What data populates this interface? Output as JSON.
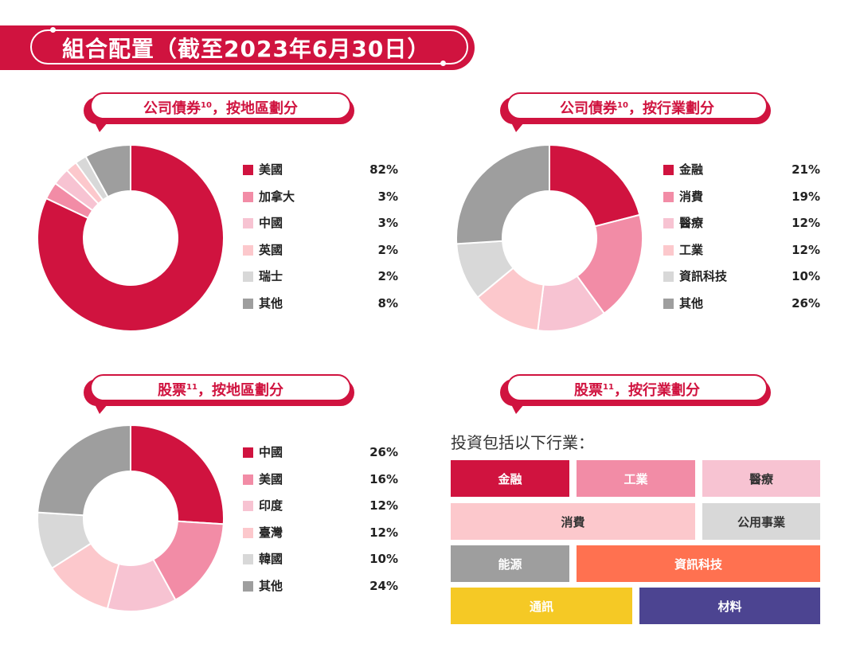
{
  "title": "組合配置（截至2023年6月30日）",
  "colors": {
    "crimson": "#d0133f",
    "pink": "#f28ca6",
    "light_pink": "#f7c3d2",
    "blush": "#fcc8cc",
    "light_grey": "#d8d8d8",
    "grey": "#9e9e9e",
    "orange": "#ff7150",
    "yellow": "#f5c925",
    "purple": "#4c4491"
  },
  "chart_data": [
    {
      "type": "pie",
      "title": "公司債券，按地區劃分",
      "title_text": "公司債券",
      "title_sup": "10",
      "title_suffix": "，按地區劃分",
      "categories": [
        "美國",
        "加拿大",
        "中國",
        "英國",
        "瑞士",
        "其他"
      ],
      "values": [
        82,
        3,
        3,
        2,
        2,
        8
      ],
      "labels": [
        "82%",
        "3%",
        "3%",
        "2%",
        "2%",
        "8%"
      ],
      "colors": [
        "#d0133f",
        "#f28ca6",
        "#f7c3d2",
        "#fcc8cc",
        "#d8d8d8",
        "#9e9e9e"
      ]
    },
    {
      "type": "pie",
      "title": "公司債券，按行業劃分",
      "title_text": "公司債券",
      "title_sup": "10",
      "title_suffix": "，按行業劃分",
      "categories": [
        "金融",
        "消費",
        "醫療",
        "工業",
        "資訊科技",
        "其他"
      ],
      "values": [
        21,
        19,
        12,
        12,
        10,
        26
      ],
      "labels": [
        "21%",
        "19%",
        "12%",
        "12%",
        "10%",
        "26%"
      ],
      "colors": [
        "#d0133f",
        "#f28ca6",
        "#f7c3d2",
        "#fcc8cc",
        "#d8d8d8",
        "#9e9e9e"
      ]
    },
    {
      "type": "pie",
      "title": "股票，按地區劃分",
      "title_text": "股票",
      "title_sup": "11",
      "title_suffix": "，按地區劃分",
      "categories": [
        "中國",
        "美國",
        "印度",
        "臺灣",
        "韓國",
        "其他"
      ],
      "values": [
        26,
        16,
        12,
        12,
        10,
        24
      ],
      "labels": [
        "26%",
        "16%",
        "12%",
        "12%",
        "10%",
        "24%"
      ],
      "colors": [
        "#d0133f",
        "#f28ca6",
        "#f7c3d2",
        "#fcc8cc",
        "#d8d8d8",
        "#9e9e9e"
      ]
    }
  ],
  "sectors_panel": {
    "title_text": "股票",
    "title_sup": "11",
    "title_suffix": "，按行業劃分",
    "intro": "投資包括以下行業：",
    "tiles": [
      {
        "label": "金融",
        "color": "#d0133f",
        "text_color": "#ffffff"
      },
      {
        "label": "工業",
        "color": "#f28ca6",
        "text_color": "#ffffff"
      },
      {
        "label": "醫療",
        "color": "#f7c3d2",
        "text_color": "#333333"
      },
      {
        "label": "消費",
        "color": "#fcc8cc",
        "text_color": "#333333"
      },
      {
        "label": "公用事業",
        "color": "#d8d8d8",
        "text_color": "#333333"
      },
      {
        "label": "能源",
        "color": "#9e9e9e",
        "text_color": "#ffffff"
      },
      {
        "label": "資訊科技",
        "color": "#ff7150",
        "text_color": "#ffffff"
      },
      {
        "label": "通訊",
        "color": "#f5c925",
        "text_color": "#ffffff"
      },
      {
        "label": "材料",
        "color": "#4c4491",
        "text_color": "#ffffff"
      }
    ]
  }
}
